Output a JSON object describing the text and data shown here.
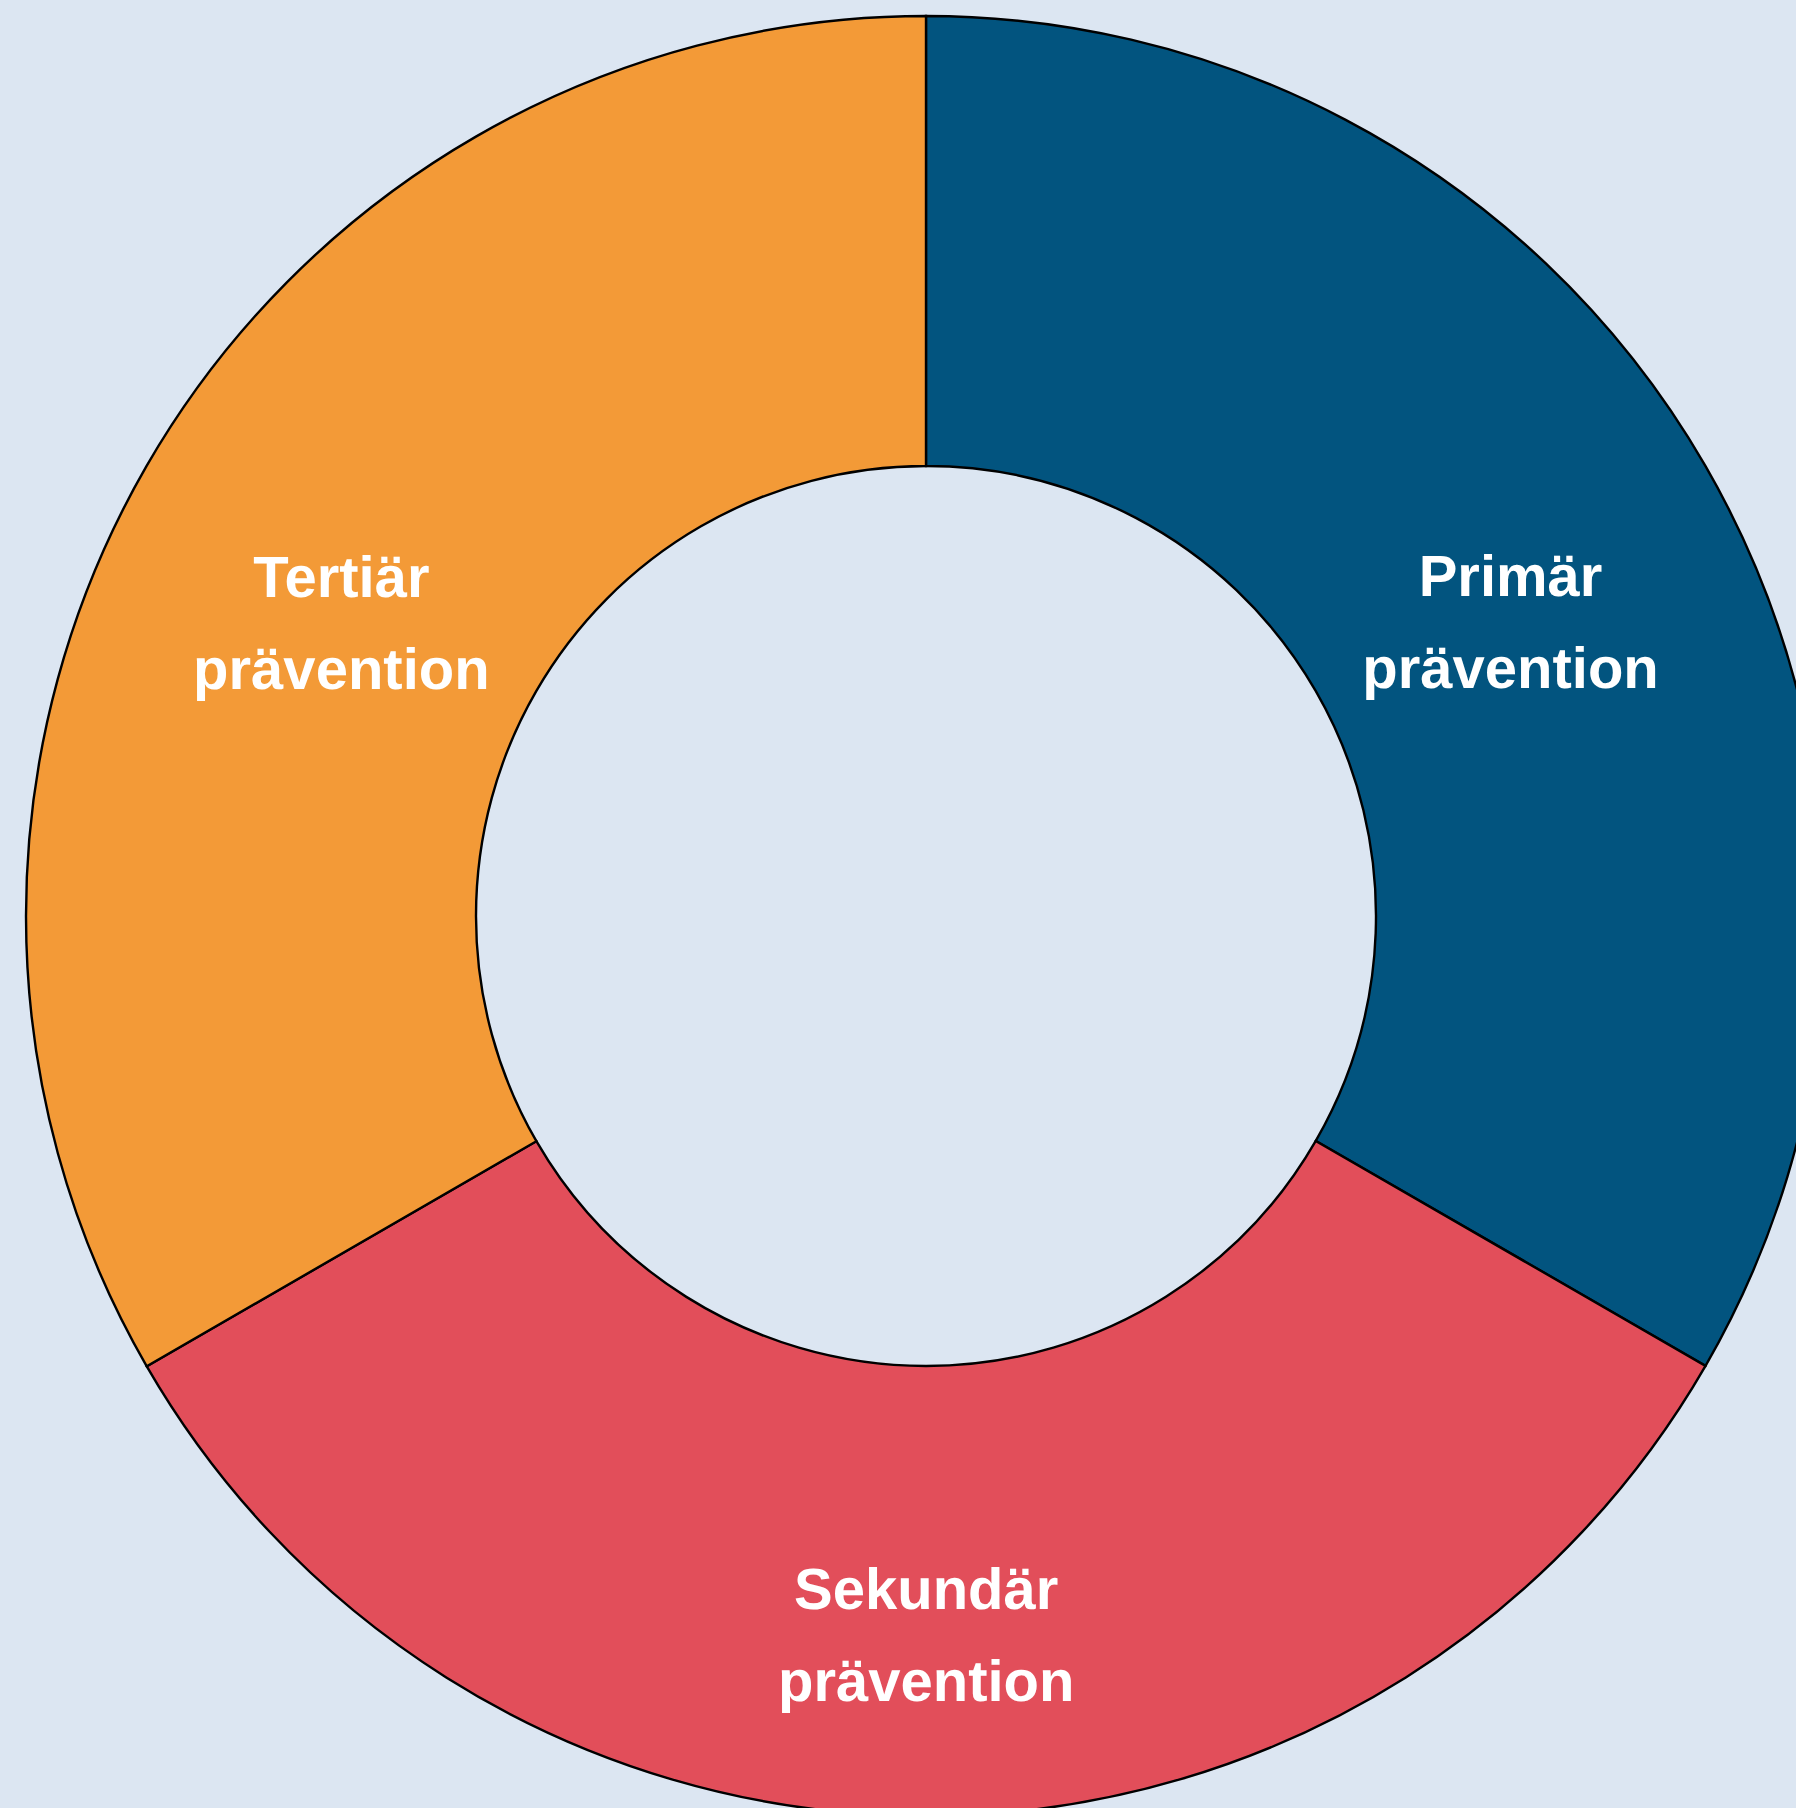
{
  "chart_data": {
    "type": "donut",
    "categories": [
      "Primär prävention",
      "Sekundär prävention",
      "Tertiär prävention"
    ],
    "values": [
      33.33,
      33.33,
      33.34
    ],
    "colors": [
      "#02547f",
      "#e24e5a",
      "#f39a37"
    ]
  }
}
